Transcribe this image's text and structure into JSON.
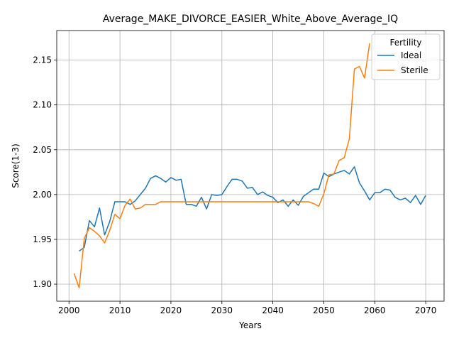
{
  "chart_data": {
    "type": "line",
    "title": "Average_MAKE_DIVORCE_EASIER_White_Above_Average_IQ",
    "xlabel": "Years",
    "ylabel": "Score(1-3)",
    "xlim": [
      1997.6,
      2073.6
    ],
    "ylim": [
      1.881,
      2.183
    ],
    "xticks": [
      2000,
      2010,
      2020,
      2030,
      2040,
      2050,
      2060,
      2070
    ],
    "yticks": [
      1.9,
      1.95,
      2.0,
      2.05,
      2.1,
      2.15
    ],
    "ytick_labels": [
      "1.90",
      "1.95",
      "2.00",
      "2.05",
      "2.10",
      "2.15"
    ],
    "grid": true,
    "legend": {
      "title": "Fertility",
      "position": "top-right"
    },
    "series": [
      {
        "name": "Ideal",
        "color": "#1f77b4",
        "x": [
          2002,
          2003,
          2004,
          2005,
          2006,
          2007,
          2008,
          2009,
          2010,
          2011,
          2012,
          2013,
          2014,
          2015,
          2016,
          2017,
          2018,
          2019,
          2020,
          2021,
          2022,
          2023,
          2024,
          2025,
          2026,
          2027,
          2028,
          2029,
          2030,
          2031,
          2032,
          2033,
          2034,
          2035,
          2036,
          2037,
          2038,
          2039,
          2040,
          2041,
          2042,
          2043,
          2044,
          2045,
          2046,
          2047,
          2048,
          2049,
          2050,
          2051,
          2052,
          2053,
          2054,
          2055,
          2056,
          2057,
          2058,
          2059,
          2060,
          2061,
          2062,
          2063,
          2064,
          2065,
          2066,
          2067,
          2068,
          2069,
          2070
        ],
        "y": [
          1.937,
          1.941,
          1.971,
          1.964,
          1.985,
          1.955,
          1.97,
          1.992,
          1.992,
          1.992,
          1.989,
          1.993,
          2.0,
          2.007,
          2.018,
          2.021,
          2.018,
          2.014,
          2.019,
          2.016,
          2.017,
          1.989,
          1.989,
          1.987,
          1.997,
          1.984,
          2.0,
          1.999,
          2.0,
          2.009,
          2.017,
          2.017,
          2.015,
          2.007,
          2.008,
          2.0,
          2.003,
          1.999,
          1.997,
          1.991,
          1.994,
          1.987,
          1.994,
          1.988,
          1.998,
          2.002,
          2.006,
          2.006,
          2.024,
          2.02,
          2.023,
          2.025,
          2.027,
          2.023,
          2.031,
          2.013,
          2.004,
          1.994,
          2.002,
          2.002,
          2.006,
          2.005,
          1.997,
          1.994,
          1.996,
          1.991,
          1.999,
          1.989,
          1.999
        ]
      },
      {
        "name": "Sterile",
        "color": "#ff7f0e",
        "x": [
          2001,
          2002,
          2003,
          2004,
          2005,
          2006,
          2007,
          2008,
          2009,
          2010,
          2011,
          2012,
          2013,
          2014,
          2015,
          2016,
          2017,
          2018,
          2019,
          2020,
          2021,
          2022,
          2023,
          2024,
          2025,
          2026,
          2027,
          2028,
          2029,
          2030,
          2031,
          2032,
          2033,
          2034,
          2035,
          2036,
          2037,
          2038,
          2039,
          2040,
          2041,
          2042,
          2043,
          2044,
          2045,
          2046,
          2047,
          2048,
          2049,
          2050,
          2051,
          2052,
          2053,
          2054,
          2055,
          2056,
          2057,
          2058,
          2059
        ],
        "y": [
          1.912,
          1.896,
          1.951,
          1.963,
          1.959,
          1.954,
          1.946,
          1.96,
          1.978,
          1.973,
          1.988,
          1.995,
          1.984,
          1.985,
          1.989,
          1.989,
          1.989,
          1.992,
          1.992,
          1.992,
          1.992,
          1.992,
          1.992,
          1.992,
          1.992,
          1.992,
          1.992,
          1.992,
          1.992,
          1.992,
          1.992,
          1.992,
          1.992,
          1.992,
          1.992,
          1.992,
          1.992,
          1.992,
          1.992,
          1.992,
          1.992,
          1.992,
          1.992,
          1.992,
          1.992,
          1.992,
          1.992,
          1.99,
          1.987,
          2.001,
          2.022,
          2.023,
          2.038,
          2.041,
          2.062,
          2.14,
          2.143,
          2.13,
          2.169
        ]
      }
    ]
  }
}
